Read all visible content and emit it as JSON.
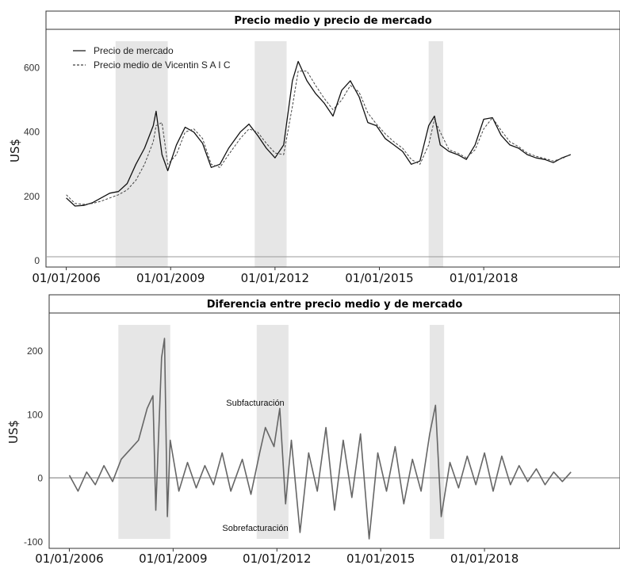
{
  "chart_data": [
    {
      "type": "line",
      "title": "Precio medio y precio de mercado",
      "ylabel": "US$",
      "xlabel": "",
      "x_ticks": [
        "01/01/2006",
        "01/01/2009",
        "01/01/2012",
        "01/01/2015",
        "01/01/2018"
      ],
      "y_ticks": [
        0,
        200,
        400,
        600
      ],
      "ylim": [
        -20,
        720
      ],
      "xlim": [
        "2005-06",
        "2021-12"
      ],
      "legend_position": "top-left",
      "shaded_periods": [
        [
          "2007-06",
          "2008-12"
        ],
        [
          "2011-06",
          "2012-05"
        ],
        [
          "2016-06",
          "2016-11"
        ]
      ],
      "series": [
        {
          "name": "Precio de mercado",
          "style": "solid",
          "points": [
            [
              "2006-01",
              195
            ],
            [
              "2006-04",
              170
            ],
            [
              "2006-07",
              172
            ],
            [
              "2006-10",
              180
            ],
            [
              "2007-01",
              195
            ],
            [
              "2007-04",
              210
            ],
            [
              "2007-07",
              215
            ],
            [
              "2007-10",
              240
            ],
            [
              "2008-01",
              300
            ],
            [
              "2008-04",
              350
            ],
            [
              "2008-07",
              420
            ],
            [
              "2008-08",
              465
            ],
            [
              "2008-10",
              330
            ],
            [
              "2008-12",
              280
            ],
            [
              "2009-03",
              360
            ],
            [
              "2009-06",
              415
            ],
            [
              "2009-09",
              400
            ],
            [
              "2009-12",
              365
            ],
            [
              "2010-03",
              290
            ],
            [
              "2010-06",
              300
            ],
            [
              "2010-09",
              350
            ],
            [
              "2011-01",
              400
            ],
            [
              "2011-04",
              425
            ],
            [
              "2011-07",
              390
            ],
            [
              "2011-10",
              350
            ],
            [
              "2012-01",
              320
            ],
            [
              "2012-04",
              360
            ],
            [
              "2012-07",
              560
            ],
            [
              "2012-09",
              620
            ],
            [
              "2012-12",
              560
            ],
            [
              "2013-03",
              520
            ],
            [
              "2013-06",
              490
            ],
            [
              "2013-09",
              450
            ],
            [
              "2013-12",
              530
            ],
            [
              "2014-03",
              560
            ],
            [
              "2014-06",
              510
            ],
            [
              "2014-09",
              430
            ],
            [
              "2014-12",
              420
            ],
            [
              "2015-03",
              380
            ],
            [
              "2015-06",
              360
            ],
            [
              "2015-09",
              340
            ],
            [
              "2015-12",
              300
            ],
            [
              "2016-03",
              310
            ],
            [
              "2016-06",
              420
            ],
            [
              "2016-08",
              450
            ],
            [
              "2016-10",
              360
            ],
            [
              "2017-01",
              340
            ],
            [
              "2017-04",
              330
            ],
            [
              "2017-07",
              315
            ],
            [
              "2017-10",
              360
            ],
            [
              "2018-01",
              440
            ],
            [
              "2018-04",
              445
            ],
            [
              "2018-07",
              390
            ],
            [
              "2018-10",
              360
            ],
            [
              "2019-01",
              350
            ],
            [
              "2019-04",
              330
            ],
            [
              "2019-07",
              320
            ],
            [
              "2019-10",
              315
            ],
            [
              "2020-01",
              305
            ],
            [
              "2020-04",
              320
            ],
            [
              "2020-07",
              330
            ]
          ]
        },
        {
          "name": "Precio medio de Vicentin S A I C",
          "style": "dashed",
          "points": [
            [
              "2006-01",
              205
            ],
            [
              "2006-04",
              178
            ],
            [
              "2006-07",
              175
            ],
            [
              "2006-10",
              178
            ],
            [
              "2007-01",
              185
            ],
            [
              "2007-04",
              195
            ],
            [
              "2007-07",
              205
            ],
            [
              "2007-10",
              220
            ],
            [
              "2008-01",
              250
            ],
            [
              "2008-04",
              300
            ],
            [
              "2008-07",
              370
            ],
            [
              "2008-08",
              420
            ],
            [
              "2008-10",
              430
            ],
            [
              "2008-12",
              300
            ],
            [
              "2009-03",
              330
            ],
            [
              "2009-06",
              400
            ],
            [
              "2009-09",
              410
            ],
            [
              "2009-12",
              380
            ],
            [
              "2010-03",
              300
            ],
            [
              "2010-06",
              290
            ],
            [
              "2010-09",
              330
            ],
            [
              "2011-01",
              380
            ],
            [
              "2011-04",
              410
            ],
            [
              "2011-07",
              400
            ],
            [
              "2011-10",
              365
            ],
            [
              "2012-01",
              335
            ],
            [
              "2012-04",
              330
            ],
            [
              "2012-07",
              480
            ],
            [
              "2012-09",
              590
            ],
            [
              "2012-12",
              590
            ],
            [
              "2013-03",
              545
            ],
            [
              "2013-06",
              505
            ],
            [
              "2013-09",
              470
            ],
            [
              "2013-12",
              500
            ],
            [
              "2014-03",
              545
            ],
            [
              "2014-06",
              525
            ],
            [
              "2014-09",
              460
            ],
            [
              "2014-12",
              425
            ],
            [
              "2015-03",
              395
            ],
            [
              "2015-06",
              370
            ],
            [
              "2015-09",
              350
            ],
            [
              "2015-12",
              315
            ],
            [
              "2016-03",
              300
            ],
            [
              "2016-06",
              360
            ],
            [
              "2016-08",
              440
            ],
            [
              "2016-10",
              400
            ],
            [
              "2017-01",
              345
            ],
            [
              "2017-04",
              335
            ],
            [
              "2017-07",
              320
            ],
            [
              "2017-10",
              345
            ],
            [
              "2018-01",
              410
            ],
            [
              "2018-04",
              445
            ],
            [
              "2018-07",
              405
            ],
            [
              "2018-10",
              370
            ],
            [
              "2019-01",
              355
            ],
            [
              "2019-04",
              335
            ],
            [
              "2019-07",
              325
            ],
            [
              "2019-10",
              318
            ],
            [
              "2020-01",
              310
            ],
            [
              "2020-04",
              318
            ],
            [
              "2020-07",
              330
            ]
          ]
        }
      ]
    },
    {
      "type": "line",
      "title": "Diferencia entre precio medio y de mercado",
      "ylabel": "US$",
      "xlabel": "",
      "x_ticks": [
        "01/01/2006",
        "01/01/2009",
        "01/01/2012",
        "01/01/2015",
        "01/01/2018"
      ],
      "y_ticks": [
        -100,
        0,
        100,
        200
      ],
      "ylim": [
        -110,
        260
      ],
      "xlim": [
        "2005-06",
        "2021-12"
      ],
      "annotations": [
        "Subfacturación",
        "Sobrefacturación"
      ],
      "shaded_periods": [
        [
          "2007-06",
          "2008-12"
        ],
        [
          "2011-06",
          "2012-05"
        ],
        [
          "2016-06",
          "2016-11"
        ]
      ],
      "series": [
        {
          "points": [
            [
              "2006-01",
              5
            ],
            [
              "2006-04",
              -20
            ],
            [
              "2006-07",
              10
            ],
            [
              "2006-10",
              -10
            ],
            [
              "2007-01",
              20
            ],
            [
              "2007-04",
              -5
            ],
            [
              "2007-07",
              30
            ],
            [
              "2007-10",
              45
            ],
            [
              "2008-01",
              60
            ],
            [
              "2008-04",
              110
            ],
            [
              "2008-06",
              130
            ],
            [
              "2008-07",
              -50
            ],
            [
              "2008-09",
              190
            ],
            [
              "2008-10",
              220
            ],
            [
              "2008-11",
              -60
            ],
            [
              "2008-12",
              60
            ],
            [
              "2009-03",
              -20
            ],
            [
              "2009-06",
              25
            ],
            [
              "2009-09",
              -15
            ],
            [
              "2009-12",
              20
            ],
            [
              "2010-03",
              -10
            ],
            [
              "2010-06",
              40
            ],
            [
              "2010-09",
              -20
            ],
            [
              "2011-01",
              30
            ],
            [
              "2011-04",
              -25
            ],
            [
              "2011-07",
              40
            ],
            [
              "2011-09",
              80
            ],
            [
              "2011-12",
              50
            ],
            [
              "2012-02",
              110
            ],
            [
              "2012-04",
              -40
            ],
            [
              "2012-06",
              60
            ],
            [
              "2012-09",
              -85
            ],
            [
              "2012-12",
              40
            ],
            [
              "2013-03",
              -20
            ],
            [
              "2013-06",
              80
            ],
            [
              "2013-09",
              -50
            ],
            [
              "2013-12",
              60
            ],
            [
              "2014-03",
              -30
            ],
            [
              "2014-06",
              70
            ],
            [
              "2014-09",
              -95
            ],
            [
              "2014-12",
              40
            ],
            [
              "2015-03",
              -20
            ],
            [
              "2015-06",
              50
            ],
            [
              "2015-09",
              -40
            ],
            [
              "2015-12",
              30
            ],
            [
              "2016-03",
              -20
            ],
            [
              "2016-06",
              70
            ],
            [
              "2016-08",
              115
            ],
            [
              "2016-10",
              -60
            ],
            [
              "2017-01",
              25
            ],
            [
              "2017-04",
              -15
            ],
            [
              "2017-07",
              35
            ],
            [
              "2017-10",
              -10
            ],
            [
              "2018-01",
              40
            ],
            [
              "2018-04",
              -20
            ],
            [
              "2018-07",
              35
            ],
            [
              "2018-10",
              -10
            ],
            [
              "2019-01",
              20
            ],
            [
              "2019-04",
              -5
            ],
            [
              "2019-07",
              15
            ],
            [
              "2019-10",
              -10
            ],
            [
              "2020-01",
              10
            ],
            [
              "2020-04",
              -5
            ],
            [
              "2020-07",
              10
            ]
          ]
        }
      ]
    }
  ]
}
